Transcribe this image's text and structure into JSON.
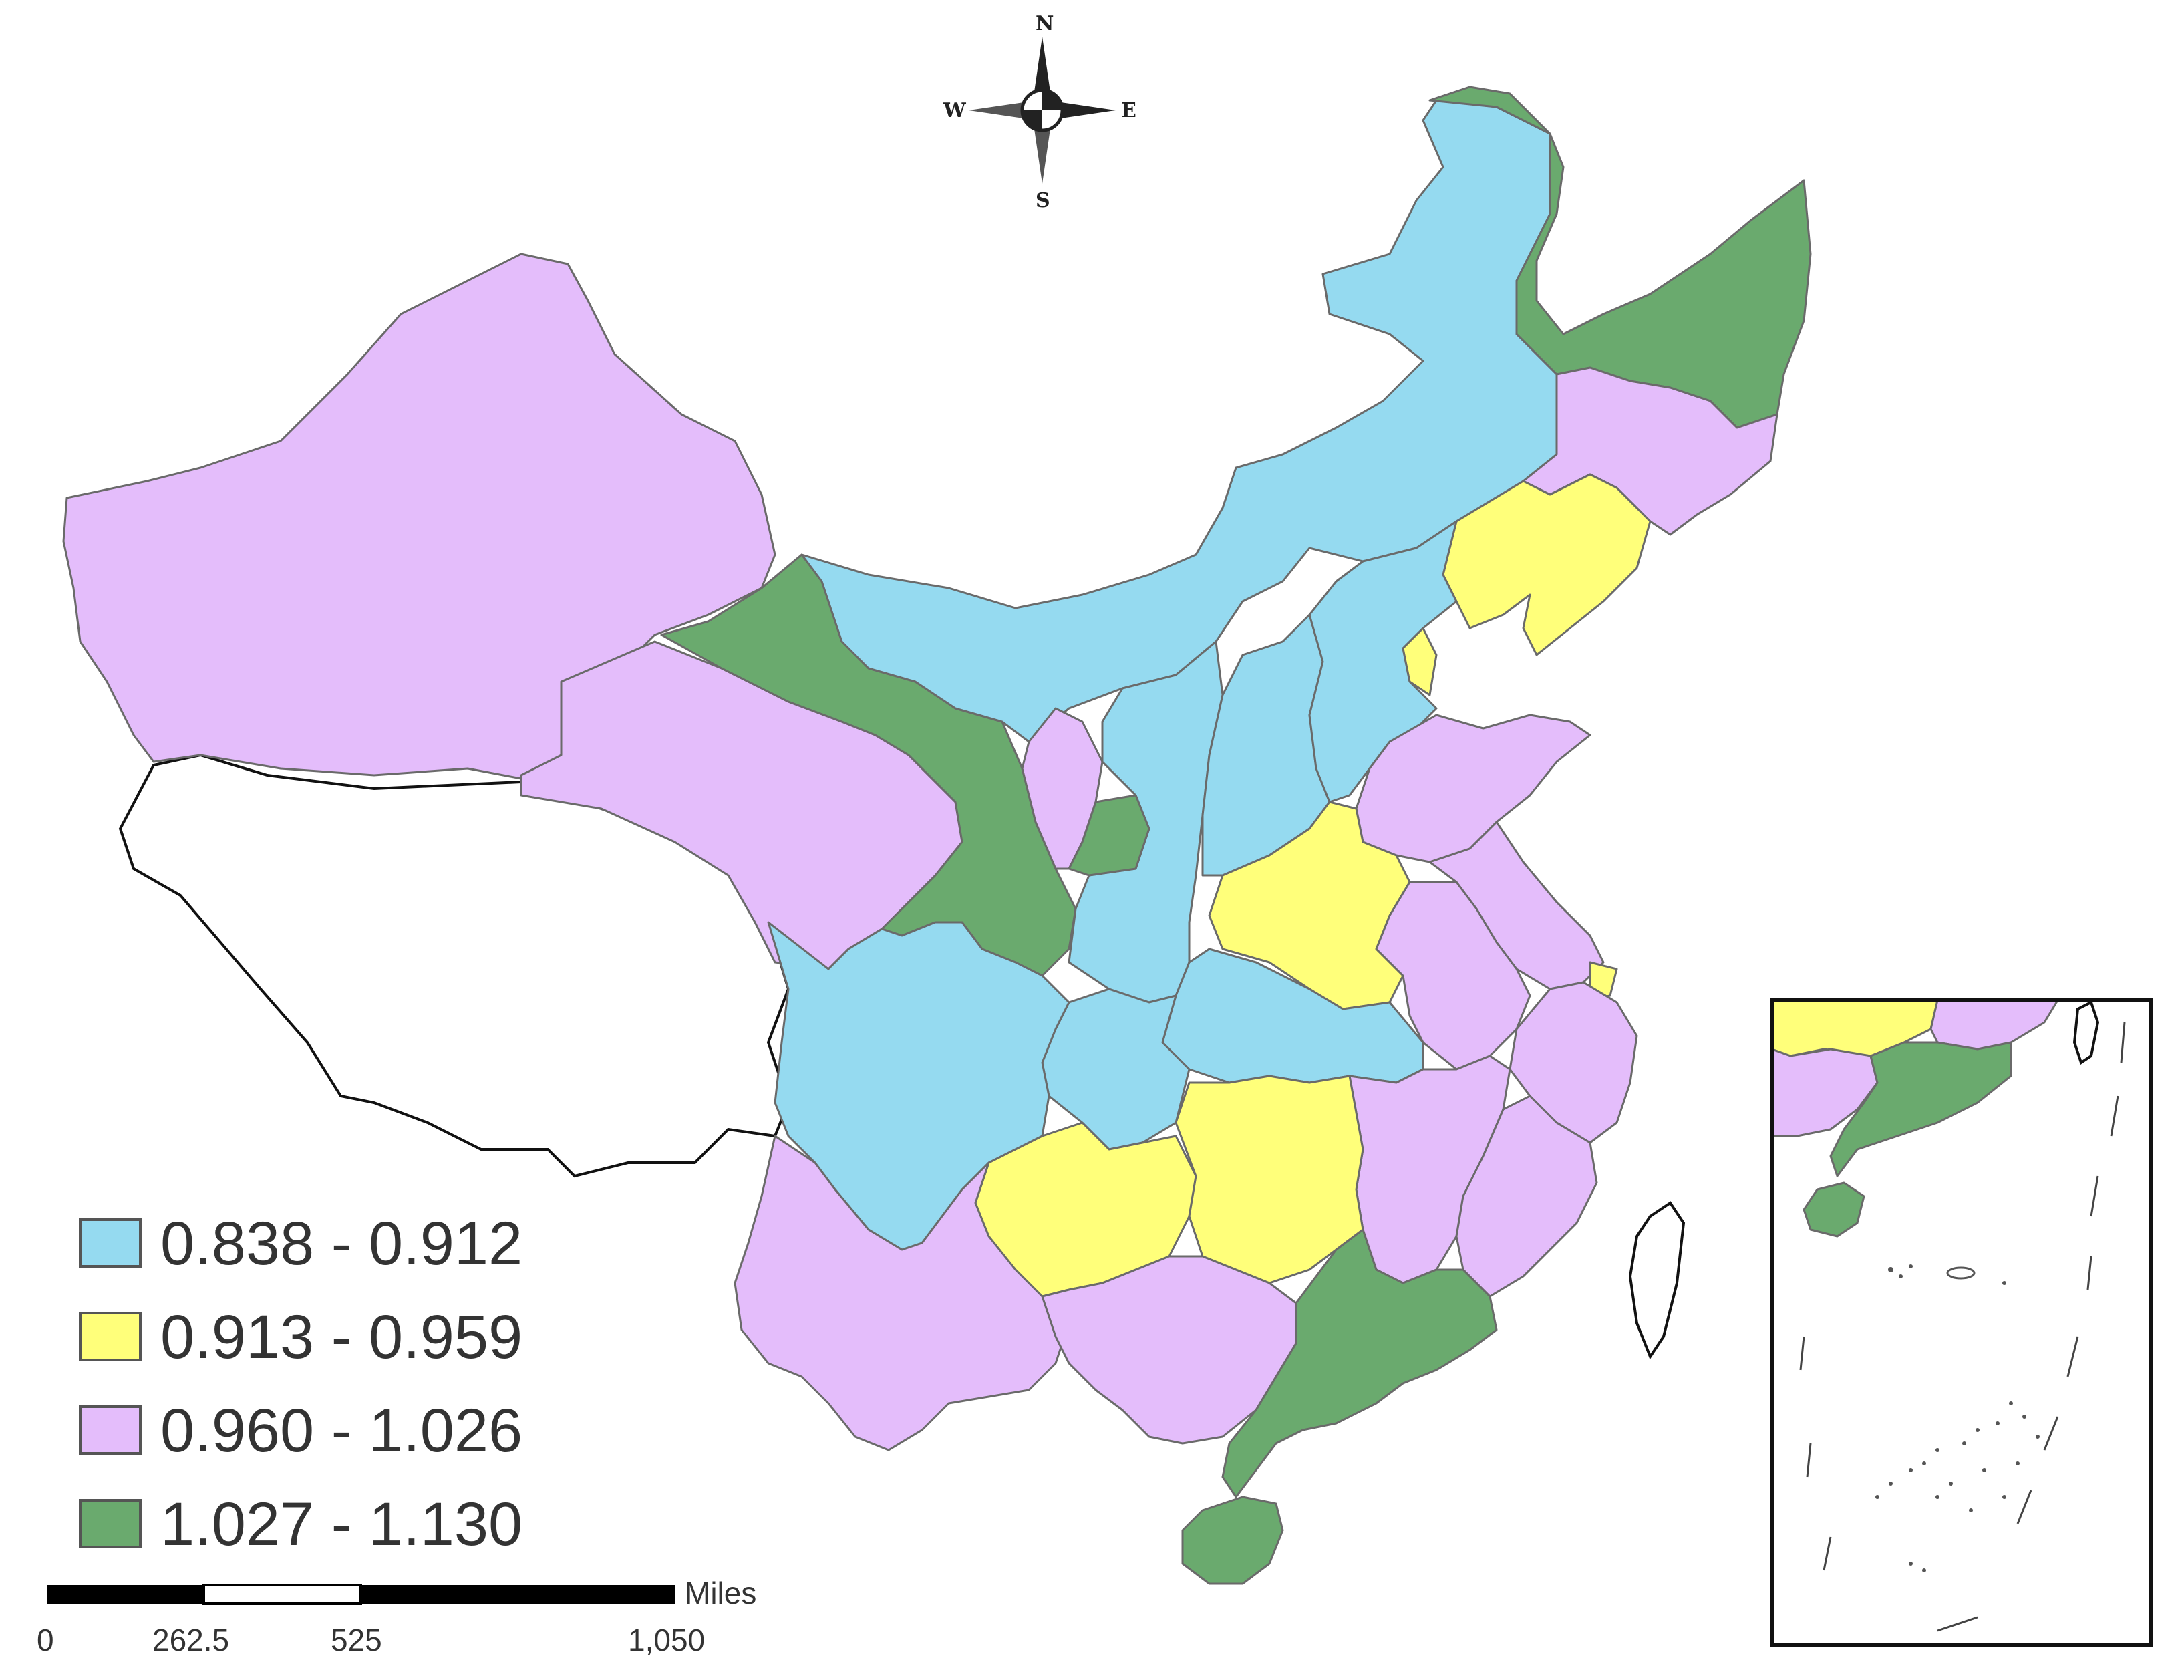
{
  "compass": {
    "north": "N",
    "south": "S",
    "west": "W",
    "east": "E"
  },
  "colors": {
    "class1": "#95daf0",
    "class2": "#ffff7a",
    "class3": "#e4bdfb",
    "class4": "#6aaa6e",
    "nodata": "#ffffff"
  },
  "legend": {
    "items": [
      {
        "label": "0.838 - 0.912",
        "color": "#95daf0"
      },
      {
        "label": "0.913 - 0.959",
        "color": "#ffff7a"
      },
      {
        "label": "0.960 - 1.026",
        "color": "#e4bdfb"
      },
      {
        "label": "1.027 - 1.130",
        "color": "#6aaa6e"
      }
    ]
  },
  "scale_bar": {
    "unit": "Miles",
    "ticks": [
      "0",
      "262.5",
      "525",
      "1,050"
    ]
  },
  "inset": {
    "description_visible": false
  }
}
